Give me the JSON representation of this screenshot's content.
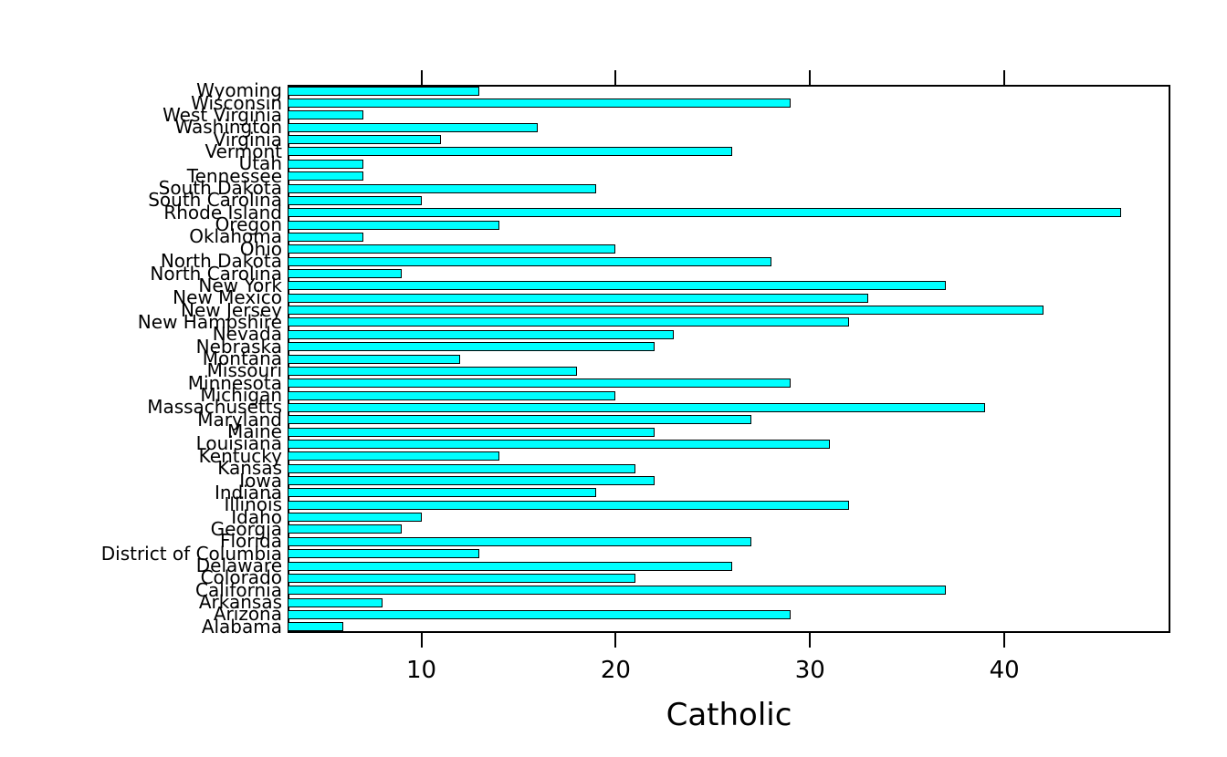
{
  "chart_data": {
    "type": "bar",
    "orientation": "horizontal",
    "title": "",
    "xlabel": "Catholic",
    "ylabel": "",
    "categories": [
      "Wyoming",
      "Wisconsin",
      "West Virginia",
      "Washington",
      "Virginia",
      "Vermont",
      "Utah",
      "Tennessee",
      "South Dakota",
      "South Carolina",
      "Rhode Island",
      "Oregon",
      "Oklahoma",
      "Ohio",
      "North Dakota",
      "North Carolina",
      "New York",
      "New Mexico",
      "New Jersey",
      "New Hampshire",
      "Nevada",
      "Nebraska",
      "Montana",
      "Missouri",
      "Minnesota",
      "Michigan",
      "Massachusetts",
      "Maryland",
      "Maine",
      "Louisiana",
      "Kentucky",
      "Kansas",
      "Iowa",
      "Indiana",
      "Illinois",
      "Idaho",
      "Georgia",
      "Florida",
      "District of Columbia",
      "Delaware",
      "Colorado",
      "California",
      "Arkansas",
      "Arizona",
      "Alabama"
    ],
    "values": [
      13,
      29,
      7,
      16,
      11,
      26,
      7,
      7,
      19,
      10,
      46,
      14,
      7,
      20,
      28,
      9,
      37,
      33,
      42,
      32,
      23,
      22,
      12,
      18,
      29,
      20,
      39,
      27,
      22,
      31,
      14,
      21,
      22,
      19,
      32,
      10,
      9,
      27,
      13,
      26,
      21,
      37,
      8,
      29,
      6
    ],
    "x_ticks": [
      10,
      20,
      30,
      40
    ],
    "xlim": [
      3.1,
      48.6
    ],
    "grid": false,
    "legend": null,
    "bar_color": "#00ffff",
    "bar_edge_color": "#000000",
    "axis_color": "#000000",
    "background_color": "#ffffff"
  }
}
